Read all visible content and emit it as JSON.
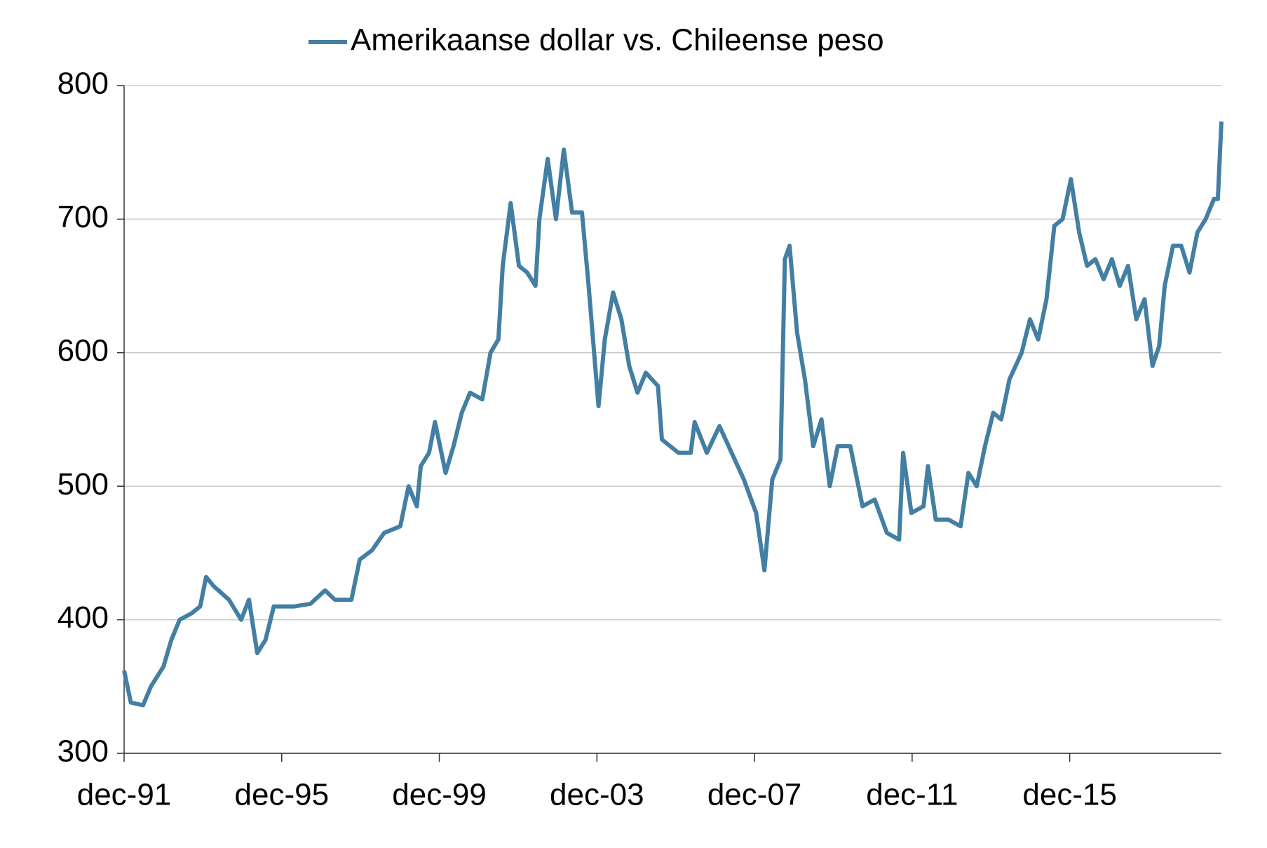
{
  "chart_data": {
    "type": "line",
    "series": [
      {
        "name": "Amerikaanse dollar vs. Chileense peso",
        "color": "#437fa3",
        "values": [
          362,
          338,
          336,
          350,
          365,
          385,
          400,
          405,
          410,
          432,
          425,
          415,
          400,
          415,
          375,
          385,
          410,
          410,
          410,
          412,
          422,
          415,
          415,
          445,
          452,
          465,
          470,
          500,
          485,
          515,
          525,
          548,
          510,
          530,
          555,
          570,
          565,
          600,
          610,
          665,
          712,
          665,
          660,
          650,
          700,
          745,
          700,
          752,
          705,
          705,
          650,
          560,
          610,
          645,
          625,
          590,
          570,
          585,
          575,
          535,
          530,
          525,
          525,
          548,
          525,
          545,
          525,
          505,
          480,
          437,
          505,
          520,
          670,
          680,
          615,
          580,
          530,
          550,
          500,
          530,
          530,
          485,
          490,
          465,
          460,
          525,
          480,
          485,
          515,
          475,
          475,
          470,
          510,
          500,
          530,
          555,
          550,
          580,
          600,
          625,
          610,
          640,
          695,
          700,
          730,
          690,
          665,
          670,
          655,
          670,
          650,
          665,
          625,
          640,
          590,
          605,
          650,
          680,
          680,
          660,
          690,
          700,
          715,
          715,
          773
        ]
      }
    ],
    "x": [
      1991.92,
      1992.09,
      1992.4,
      1992.6,
      1992.92,
      1993.12,
      1993.33,
      1993.64,
      1993.85,
      1994.0,
      1994.2,
      1994.58,
      1994.89,
      1995.09,
      1995.3,
      1995.51,
      1995.72,
      1995.92,
      1996.24,
      1996.65,
      1997.02,
      1997.27,
      1997.69,
      1997.9,
      1998.21,
      1998.52,
      1998.93,
      1999.14,
      1999.35,
      1999.45,
      1999.66,
      1999.81,
      2000.08,
      2000.28,
      2000.49,
      2000.7,
      2001.01,
      2001.22,
      2001.42,
      2001.53,
      2001.73,
      2001.94,
      2002.15,
      2002.36,
      2002.46,
      2002.67,
      2002.88,
      2003.08,
      2003.29,
      2003.54,
      2003.71,
      2003.96,
      2004.12,
      2004.33,
      2004.54,
      2004.74,
      2004.95,
      2005.16,
      2005.47,
      2005.57,
      2005.78,
      2005.99,
      2006.3,
      2006.4,
      2006.71,
      2007.03,
      2007.34,
      2007.65,
      2007.96,
      2008.17,
      2008.37,
      2008.58,
      2008.69,
      2008.81,
      2009.0,
      2009.2,
      2009.41,
      2009.62,
      2009.83,
      2010.03,
      2010.35,
      2010.66,
      2010.97,
      2011.28,
      2011.59,
      2011.69,
      2011.9,
      2012.21,
      2012.32,
      2012.52,
      2012.84,
      2013.15,
      2013.35,
      2013.56,
      2013.77,
      2013.98,
      2014.18,
      2014.39,
      2014.7,
      2014.91,
      2015.12,
      2015.33,
      2015.53,
      2015.74,
      2015.95,
      2016.16,
      2016.36,
      2016.57,
      2016.78,
      2016.99,
      2017.19,
      2017.4,
      2017.61,
      2017.82,
      2018.02,
      2018.19,
      2018.33,
      2018.54,
      2018.75,
      2018.96,
      2019.16,
      2019.37,
      2019.58,
      2019.68,
      2019.77
    ],
    "xlim": [
      1991.92,
      2019.77
    ],
    "xticks": [
      {
        "value": 1991.92,
        "label": "dec-91"
      },
      {
        "value": 1995.92,
        "label": "dec-95"
      },
      {
        "value": 1999.92,
        "label": "dec-99"
      },
      {
        "value": 2003.92,
        "label": "dec-03"
      },
      {
        "value": 2007.92,
        "label": "dec-07"
      },
      {
        "value": 2011.92,
        "label": "dec-11"
      },
      {
        "value": 2015.92,
        "label": "dec-15"
      }
    ],
    "ylim": [
      300,
      800
    ],
    "yticks": [
      300,
      400,
      500,
      600,
      700,
      800
    ],
    "grid": true,
    "legend": "top"
  }
}
